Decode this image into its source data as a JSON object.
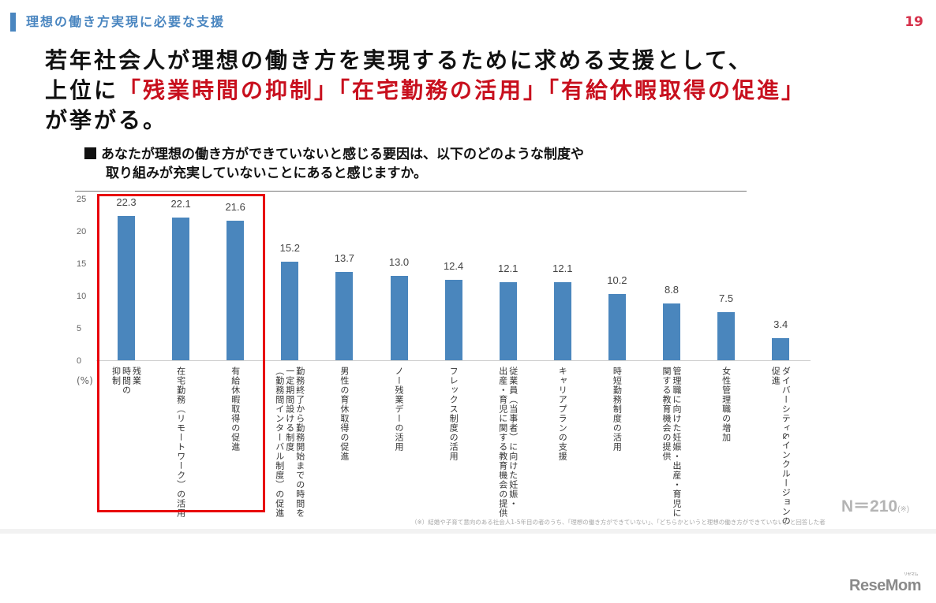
{
  "header": {
    "section_title": "理想の働き方実現に必要な支援",
    "page_number": "19",
    "accent_color": "#4a86c0",
    "page_number_color": "#d6304a"
  },
  "headline": {
    "line1": "若年社会人が理想の働き方を実現するために求める支援として、",
    "line2_prefix": "上位に",
    "line2_highlight": "「残業時間の抑制」「在宅勤務の活用」「有給休暇取得の促進」",
    "line3": "が挙がる。",
    "highlight_color": "#c8101e"
  },
  "question": {
    "line1": "あなたが理想の働き方ができていないと感じる要因は、以下のどのような制度や",
    "line2": "取り組みが充実していないことにあると感じますか。"
  },
  "chart_data": {
    "type": "bar",
    "title": "あなたが理想の働き方ができていないと感じる要因は、以下のどのような制度や取り組みが充実していないことにあると感じますか。",
    "xlabel": "",
    "ylabel": "(%)",
    "ylim": [
      0,
      25
    ],
    "yticks": [
      0,
      5,
      10,
      15,
      20,
      25
    ],
    "grid": false,
    "legend": null,
    "bar_color": "#4a86bd",
    "categories": [
      "残業時間の抑制",
      "在宅勤務（リモートワーク）の活用",
      "有給休暇取得の促進",
      "勤務終了から勤務開始までの時間を一定期間設ける制度（勤務間インターバル制度）の促進",
      "男性の育休取得の促進",
      "ノー残業デーの活用",
      "フレックス制度の活用",
      "従業員（当事者）に向けた妊娠・出産・育児に関する教育機会の提供",
      "キャリアプランの支援",
      "時短勤務制度の活用",
      "管理職に向けた妊娠・出産・育児に関する教育機会の提供",
      "女性管理職の増加",
      "ダイバーシティ&インクルージョンの促進"
    ],
    "values": [
      22.3,
      22.1,
      21.6,
      15.2,
      13.7,
      13.0,
      12.4,
      12.1,
      12.1,
      10.2,
      8.8,
      7.5,
      3.4
    ],
    "value_labels": [
      "22.3",
      "22.1",
      "21.6",
      "15.2",
      "13.7",
      "13.0",
      "12.4",
      "12.1",
      "12.1",
      "10.2",
      "8.8",
      "7.5",
      "3.4"
    ],
    "annotations": [
      "Top 3 bars highlighted with red box"
    ],
    "sample_size": "N＝210(※)"
  },
  "axis": {
    "y_ticks": [
      "25",
      "20",
      "15",
      "10",
      "5",
      "0"
    ],
    "y_unit": "(%)"
  },
  "x_labels": [
    "残業\n時間の\n抑制",
    "在宅勤務（リモートワーク）の活用",
    "有給休暇取得の促進",
    "勤務終了から勤務開始までの時間を\n一定期間設ける制度\n（勤務間インターバル制度）の促進",
    "男性の育休取得の促進",
    "ノー残業デーの活用",
    "フレックス制度の活用",
    "従業員（当事者）に向けた妊娠・\n出産・育児に関する教育機会の提供",
    "キャリアプランの支援",
    "時短勤務制度の活用",
    "管理職に向けた妊娠・出産・育児に\n関する教育機会の提供",
    "女性管理職の増加",
    "ダイバーシティ&インクルージョンの\n促進"
  ],
  "sample": {
    "n_main": "N＝210",
    "n_note": "(※)"
  },
  "footnote": "（※）結婚や子育て意向のある社会人1-5年目の者のうち、「理想の働き方ができていない」、「どちらかというと理想の働き方ができていない」と回答した者",
  "logo": {
    "text": "ReseMom",
    "ruby": "リセマム"
  }
}
